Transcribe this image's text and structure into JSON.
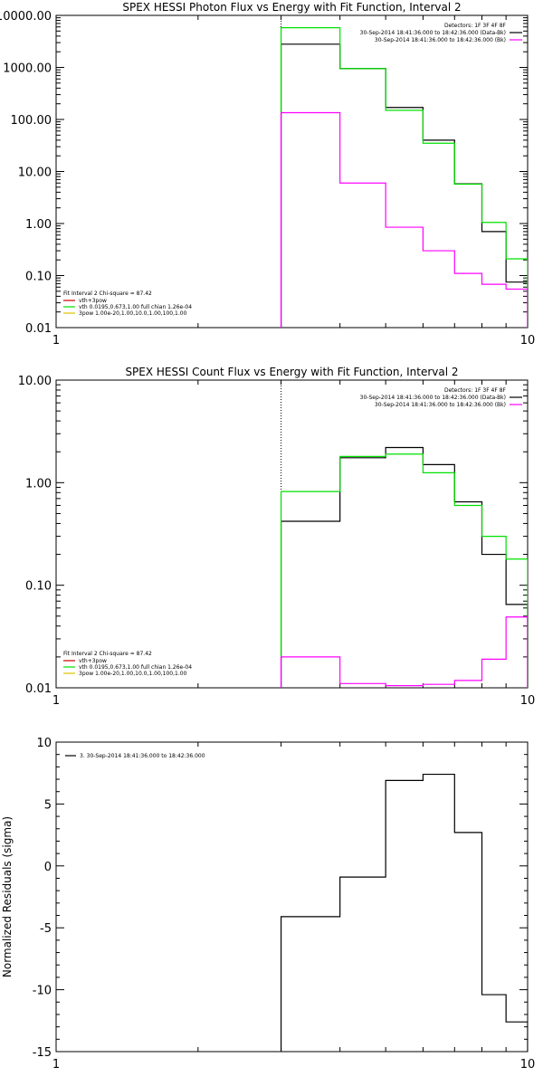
{
  "chart_data": [
    {
      "type": "line",
      "title": "SPEX HESSI Photon Flux vs Energy with Fit Function, Interval 2",
      "xlabel": "",
      "ylabel": "",
      "xscale": "log",
      "yscale": "log",
      "xlim": [
        1,
        10
      ],
      "ylim": [
        0.01,
        10000
      ],
      "x_ticks": [
        "1",
        "10"
      ],
      "y_ticks": [
        "0.01",
        "0.10",
        "1.00",
        "10.00",
        "100.00",
        "1000.00",
        "10000.00"
      ],
      "y_tick_values": [
        0.01,
        0.1,
        1,
        10,
        100,
        1000,
        10000
      ],
      "vline_x": 3,
      "bin_edges": [
        3,
        4,
        5,
        6,
        7,
        8,
        9,
        10
      ],
      "series": [
        {
          "color": "#000000",
          "values": [
            2800,
            950,
            170,
            40,
            5.8,
            0.7,
            0.075
          ]
        },
        {
          "color": "#00e000",
          "values": [
            5800,
            950,
            150,
            35,
            5.7,
            1.05,
            0.21
          ]
        },
        {
          "color": "#ff00ff",
          "values": [
            135,
            6,
            0.85,
            0.3,
            0.11,
            0.068,
            0.055
          ]
        }
      ],
      "legend_top_right": {
        "title": "Detectors: 1F 3F 4F 8F",
        "entries": [
          {
            "label": "30-Sep-2014 18:41:36.000 to 18:42:36.000 (Data-Bk)",
            "color": "#000000"
          },
          {
            "label": "30-Sep-2014 18:41:36.000 to 18:42:36.000 (Bk)",
            "color": "#ff00ff"
          }
        ]
      },
      "legend_bottom_left": {
        "title": "Fit Interval 2   Chi-square = 87.42",
        "entries": [
          {
            "label": "vth+3pow",
            "color": "#cc0000"
          },
          {
            "label": "vth 0.0195,0.673,1.00  full chian 1.26e-04",
            "color": "#00e000"
          },
          {
            "label": "3pow 1.00e-20,1.00,10.0,1.00,100,1.00",
            "color": "#e0c000"
          }
        ]
      }
    },
    {
      "type": "line",
      "title": "SPEX HESSI Count Flux vs Energy with Fit Function, Interval 2",
      "xlabel": "",
      "ylabel": "",
      "xscale": "log",
      "yscale": "log",
      "xlim": [
        1,
        10
      ],
      "ylim": [
        0.01,
        10
      ],
      "x_ticks": [
        "1",
        "10"
      ],
      "y_ticks": [
        "0.01",
        "0.10",
        "1.00",
        "10.00"
      ],
      "y_tick_values": [
        0.01,
        0.1,
        1,
        10
      ],
      "vline_x": 3,
      "bin_edges": [
        3,
        4,
        5,
        6,
        7,
        8,
        9,
        10
      ],
      "series": [
        {
          "color": "#000000",
          "values": [
            0.42,
            1.75,
            2.2,
            1.5,
            0.65,
            0.2,
            0.065
          ]
        },
        {
          "color": "#00e000",
          "values": [
            0.82,
            1.8,
            1.9,
            1.25,
            0.6,
            0.3,
            0.18
          ]
        },
        {
          "color": "#ff00ff",
          "values": [
            0.02,
            0.011,
            0.0105,
            0.0108,
            0.0118,
            0.019,
            0.049
          ]
        }
      ],
      "legend_top_right": {
        "title": "Detectors: 1F 3F 4F 8F",
        "entries": [
          {
            "label": "30-Sep-2014 18:41:36.000 to 18:42:36.000 (Data-Bk)",
            "color": "#000000"
          },
          {
            "label": "30-Sep-2014 18:41:36.000 to 18:42:36.000 (Bk)",
            "color": "#ff00ff"
          }
        ]
      },
      "legend_bottom_left": {
        "title": "Fit Interval 2   Chi-square = 87.42",
        "entries": [
          {
            "label": "vth+3pow",
            "color": "#cc0000"
          },
          {
            "label": "vth 0.0195,0.673,1.00  full chian 1.26e-04",
            "color": "#00e000"
          },
          {
            "label": "3pow 1.00e-20,1.00,10.0,1.00,100,1.00",
            "color": "#e0c000"
          }
        ]
      }
    },
    {
      "type": "line",
      "title": "",
      "xlabel": "",
      "ylabel": "Normalized Residuals (sigma)",
      "xscale": "log",
      "yscale": "linear",
      "xlim": [
        1,
        10
      ],
      "ylim": [
        -15,
        10
      ],
      "x_ticks": [
        "1",
        "10"
      ],
      "y_ticks": [
        "-15",
        "-10",
        "-5",
        "0",
        "5",
        "10"
      ],
      "y_tick_values": [
        -15,
        -10,
        -5,
        0,
        5,
        10
      ],
      "bin_edges": [
        3,
        4,
        5,
        6,
        7,
        8,
        9,
        10
      ],
      "series": [
        {
          "color": "#000000",
          "values": [
            -4.1,
            -0.9,
            6.9,
            7.4,
            2.7,
            -10.4,
            -12.6
          ]
        }
      ],
      "legend_top_left": {
        "entries": [
          {
            "label": "3. 30-Sep-2014 18:41:36.000 to 18:42:36.000",
            "color": "#000000"
          }
        ]
      }
    }
  ]
}
